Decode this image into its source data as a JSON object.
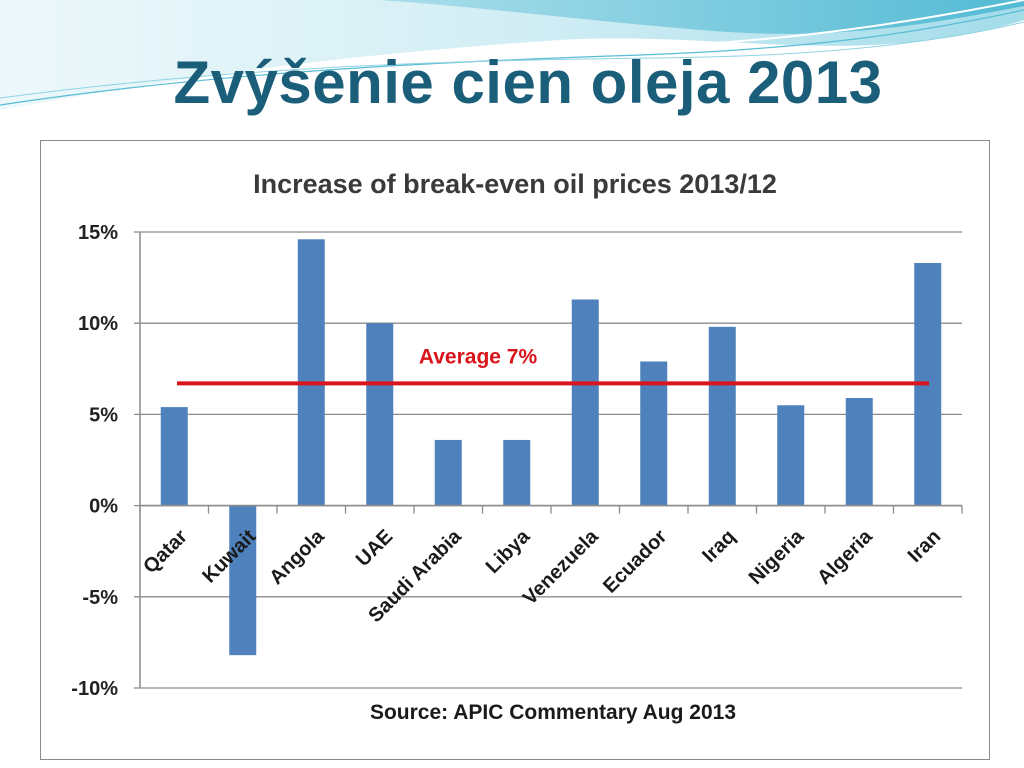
{
  "slide": {
    "title": "Zvýšenie cien oleja 2013"
  },
  "colors": {
    "title": "#1b5e7a",
    "bar": "#4f81bd",
    "average_line": "#d9141b",
    "grid": "#8c8c8c"
  },
  "chart_data": {
    "type": "bar",
    "title": "Increase of break-even oil prices 2013/12",
    "xlabel": "",
    "ylabel": "",
    "categories": [
      "Qatar",
      "Kuwait",
      "Angola",
      "UAE",
      "Saudi Arabia",
      "Libya",
      "Venezuela",
      "Ecuador",
      "Iraq",
      "Nigeria",
      "Algeria",
      "Iran"
    ],
    "series": [
      {
        "values": [
          5.4,
          -8.2,
          14.6,
          10.0,
          3.6,
          3.6,
          11.3,
          7.9,
          9.8,
          5.5,
          5.9,
          13.3
        ]
      }
    ],
    "ylim": [
      -10,
      15
    ],
    "yticks": [
      15,
      10,
      5,
      0,
      -5,
      -10
    ],
    "ytick_labels": [
      "15%",
      "10%",
      "5%",
      "0%",
      "-5%",
      "-10%"
    ],
    "grid": true,
    "average": {
      "label": "Average 7%",
      "value": 6.7
    },
    "source": "Source: APIC Commentary Aug 2013"
  }
}
